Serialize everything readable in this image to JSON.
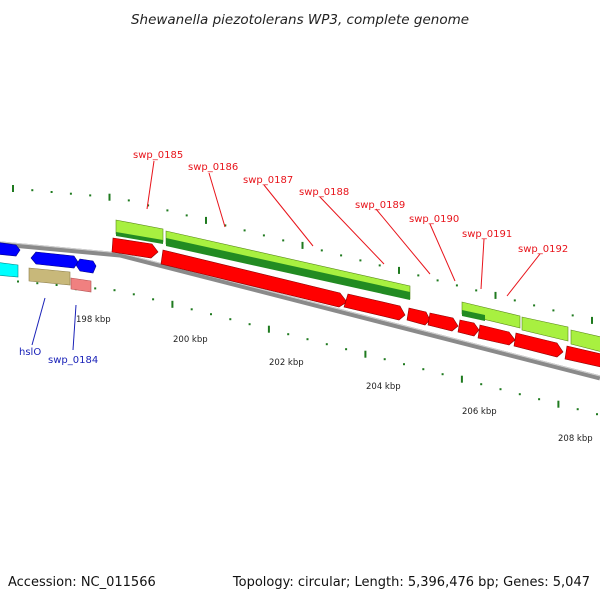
{
  "title": "Shewanella piezotolerans WP3, complete genome",
  "footer": {
    "accession": "Accession: NC_011566",
    "summary": "Topology: circular; Length: 5,396,476 bp; Genes: 5,047"
  },
  "colors": {
    "backbone": "#8a8a8a",
    "tick": "#1f7a1f",
    "red_gene": "#ff0000",
    "red_gene_light": "#f08080",
    "blue_gene": "#0000ff",
    "cyan_gene": "#00ffff",
    "olive_gene": "#c8b87a",
    "green_gene": "#228b22",
    "lime_gene": "#a8f040",
    "label_red": "#e8141b",
    "label_blue": "#1a22b8"
  },
  "scale": {
    "kbp_labels": [
      "198 kbp",
      "200 kbp",
      "202 kbp",
      "204 kbp",
      "206 kbp",
      "208 kbp"
    ]
  },
  "genes": {
    "labels_top": [
      "swp_0185",
      "swp_0186",
      "swp_0187",
      "swp_0188",
      "swp_0189",
      "swp_0190",
      "swp_0191",
      "swp_0192"
    ],
    "labels_bottom": [
      "hslO",
      "swp_0184"
    ]
  }
}
